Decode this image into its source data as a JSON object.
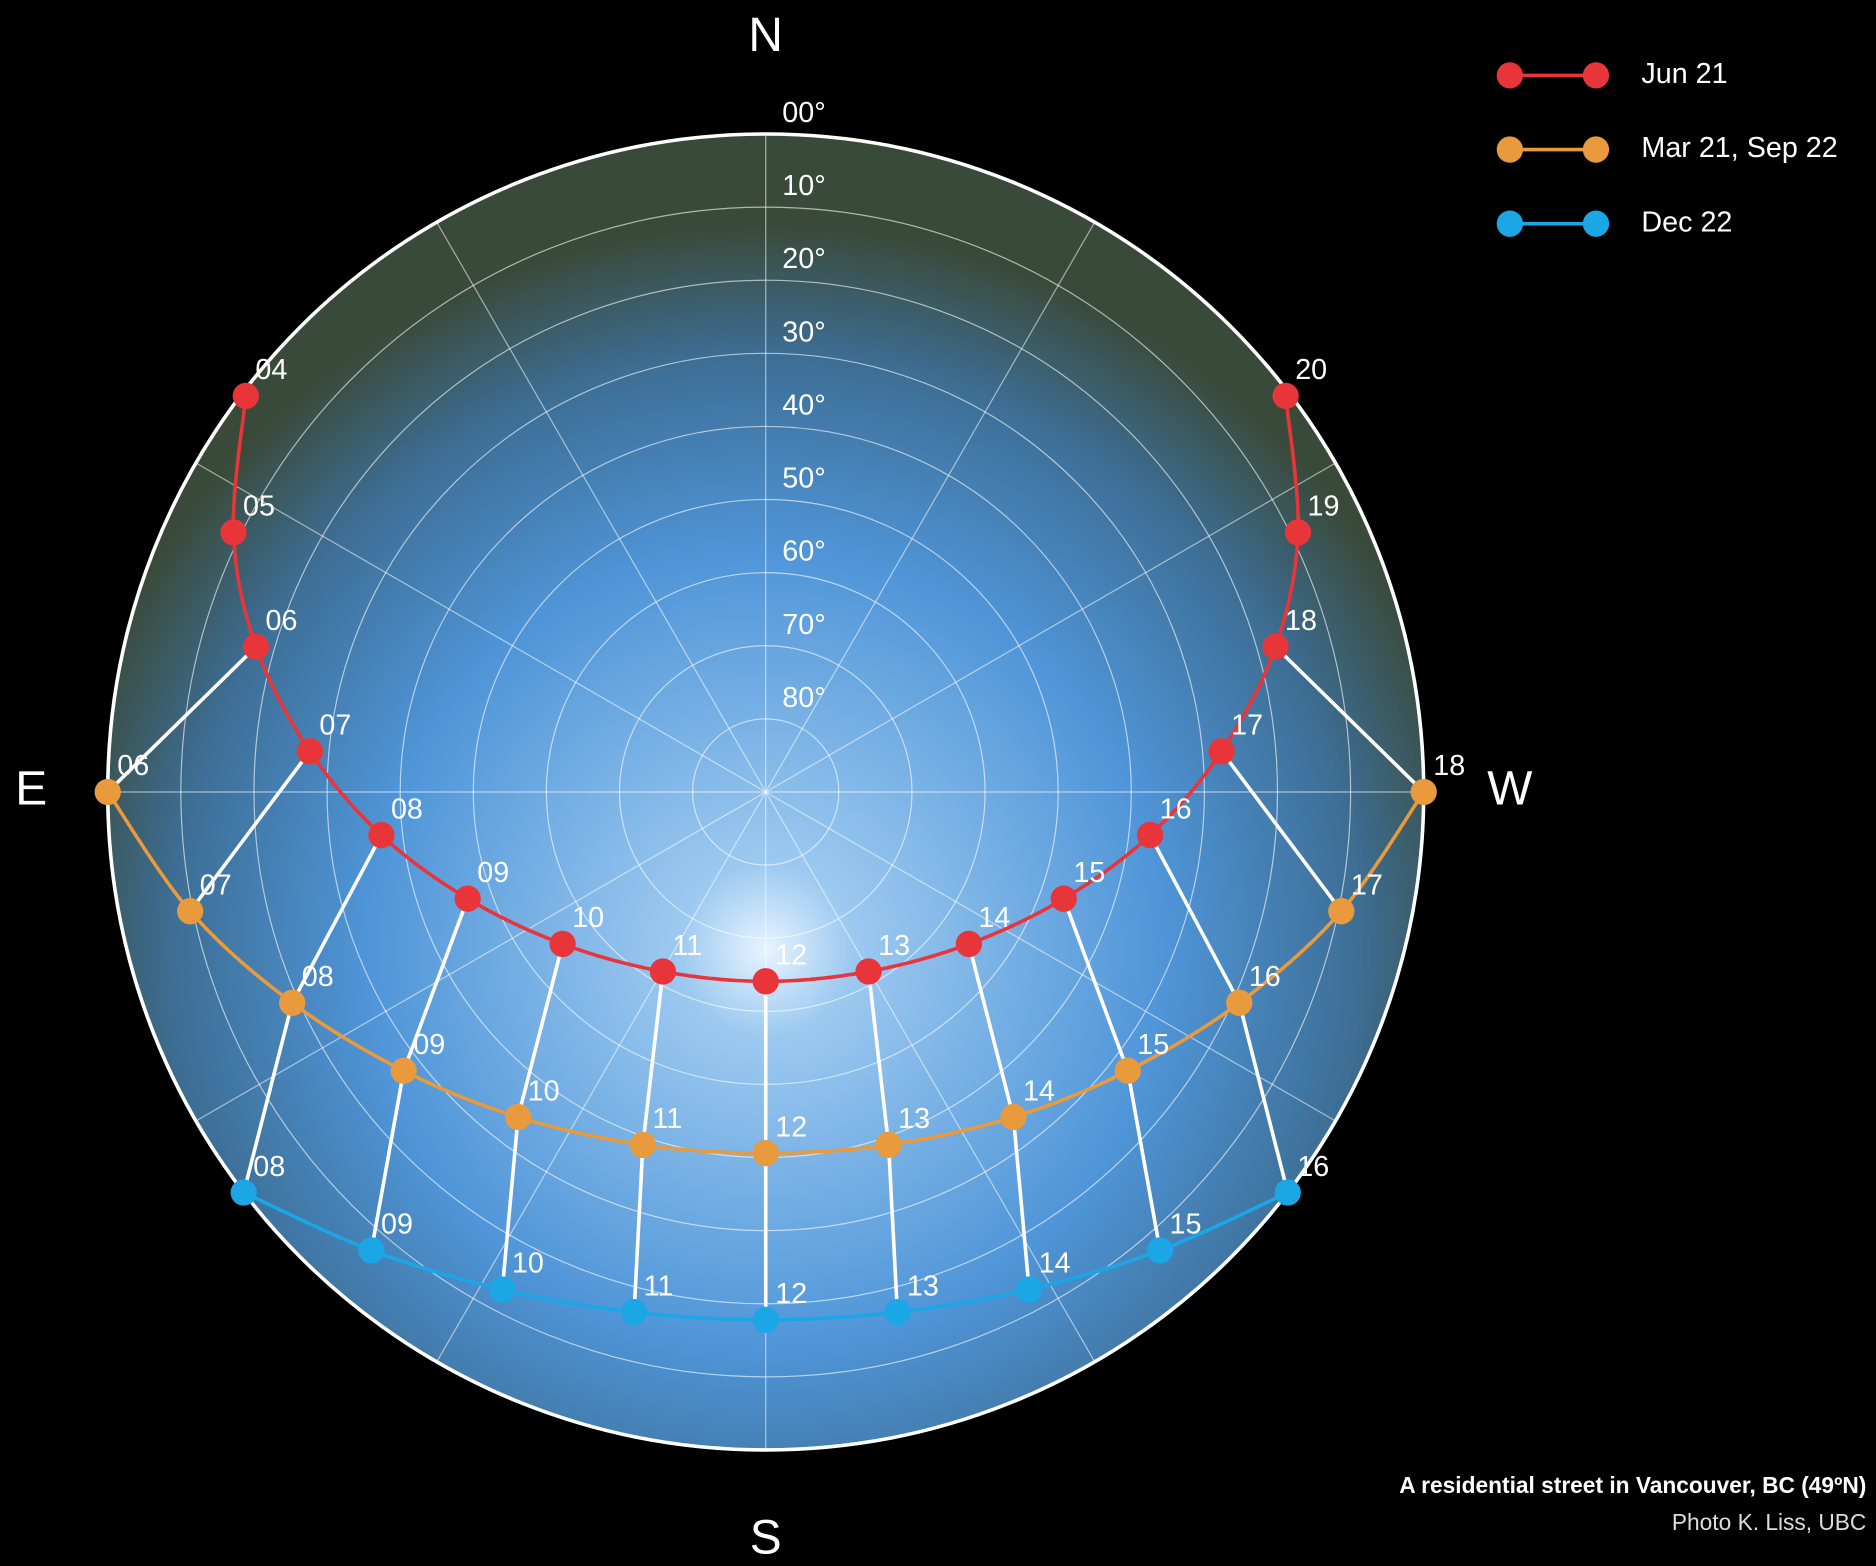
{
  "chart_data": {
    "type": "sunpath",
    "directions": {
      "north": "N",
      "east": "E",
      "south": "S",
      "west": "W"
    },
    "rticks": [
      {
        "value": 0,
        "label": "00°"
      },
      {
        "value": 10,
        "label": "10°"
      },
      {
        "value": 20,
        "label": "20°"
      },
      {
        "value": 30,
        "label": "30°"
      },
      {
        "value": 40,
        "label": "40°"
      },
      {
        "value": 50,
        "label": "50°"
      },
      {
        "value": 60,
        "label": "60°"
      },
      {
        "value": 70,
        "label": "70°"
      },
      {
        "value": 80,
        "label": "80°"
      }
    ],
    "rlim": [
      0,
      90
    ],
    "series": [
      {
        "name": "Jun 21",
        "color": "#e8353a",
        "hours": [
          "04",
          "05",
          "06",
          "07",
          "08",
          "09",
          "10",
          "11",
          "12",
          "13",
          "14",
          "15",
          "16",
          "17",
          "18",
          "19",
          "20"
        ],
        "azimuth": [
          52.7,
          64.0,
          74.1,
          84.9,
          96.4,
          109.7,
          126.8,
          150.2,
          180,
          209.8,
          233.2,
          250.3,
          263.6,
          275.1,
          285.9,
          296.0,
          307.3
        ],
        "altitude": [
          0.6,
          9.0,
          17.5,
          27.4,
          37.1,
          46.7,
          55.3,
          61.7,
          64.1,
          61.7,
          55.3,
          46.7,
          37.1,
          27.4,
          17.5,
          9.0,
          0.6
        ]
      },
      {
        "name": "Mar 21, Sep 22",
        "color": "#e89a3c",
        "hours": [
          "06",
          "07",
          "08",
          "09",
          "10",
          "11",
          "12",
          "13",
          "14",
          "15",
          "16",
          "17",
          "18"
        ],
        "azimuth": [
          90,
          101.7,
          114.0,
          127.6,
          142.7,
          160.8,
          180,
          199.2,
          217.3,
          232.4,
          246.0,
          258.3,
          270
        ],
        "altitude": [
          0,
          9.6,
          19.1,
          27.5,
          34.1,
          38.9,
          40.6,
          38.9,
          34.1,
          27.5,
          19.1,
          9.6,
          0
        ]
      },
      {
        "name": "Dec 22",
        "color": "#1ba6e6",
        "hours": [
          "08",
          "09",
          "10",
          "11",
          "12",
          "13",
          "14",
          "15",
          "16"
        ],
        "azimuth": [
          127.5,
          139.3,
          152.1,
          165.8,
          180,
          194.2,
          207.9,
          220.7,
          232.5
        ],
        "altitude": [
          0,
          7.3,
          13.0,
          16.6,
          17.8,
          16.6,
          13.0,
          7.3,
          0
        ]
      }
    ],
    "caption": "A residential street in Vancouver, BC (49ºN)",
    "credit": "Photo K. Liss, UBC"
  }
}
